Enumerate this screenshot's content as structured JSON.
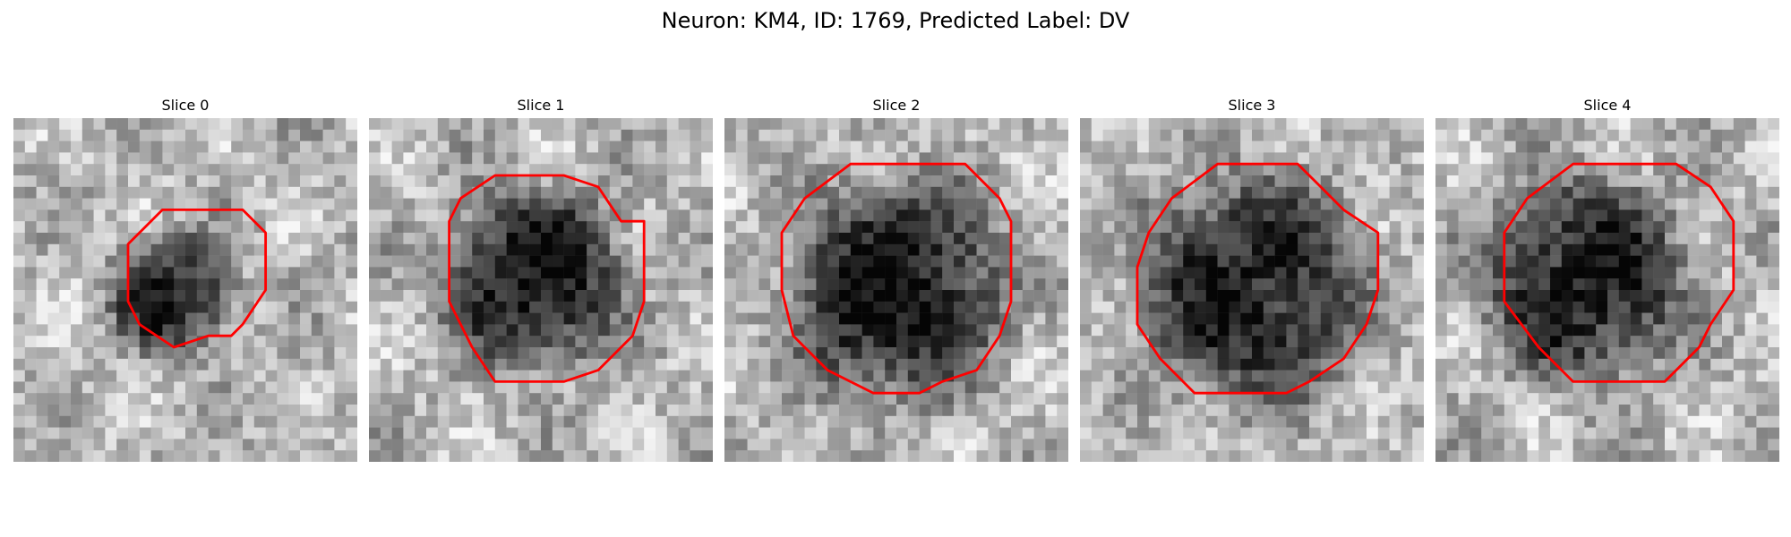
{
  "figure": {
    "suptitle": "Neuron: KM4, ID: 1769, Predicted Label: DV",
    "grid_size": 30,
    "contour_color": "#ff0000",
    "panels": [
      {
        "title": "Slice 0",
        "blob": {
          "cx": 14.0,
          "cy": 15.5,
          "r": 5.5,
          "depth": 0.55
        },
        "contour": [
          [
            13,
            8
          ],
          [
            20,
            8
          ],
          [
            22,
            10
          ],
          [
            22,
            15
          ],
          [
            20,
            18
          ],
          [
            19,
            19
          ],
          [
            17,
            19
          ],
          [
            14,
            20
          ],
          [
            11,
            18
          ],
          [
            10,
            16
          ],
          [
            10,
            11
          ]
        ],
        "seed": 11
      },
      {
        "title": "Slice 1",
        "blob": {
          "cx": 14.5,
          "cy": 14.0,
          "r": 8.0,
          "depth": 0.6
        },
        "contour": [
          [
            11,
            5
          ],
          [
            17,
            5
          ],
          [
            20,
            6
          ],
          [
            22,
            9
          ],
          [
            24,
            9
          ],
          [
            24,
            16
          ],
          [
            23,
            19
          ],
          [
            20,
            22
          ],
          [
            17,
            23
          ],
          [
            11,
            23
          ],
          [
            9,
            20
          ],
          [
            7,
            16
          ],
          [
            7,
            9
          ],
          [
            8,
            7
          ]
        ],
        "seed": 23
      },
      {
        "title": "Slice 2",
        "blob": {
          "cx": 15.0,
          "cy": 15.0,
          "r": 9.5,
          "depth": 0.62
        },
        "contour": [
          [
            11,
            4
          ],
          [
            21,
            4
          ],
          [
            24,
            7
          ],
          [
            25,
            9
          ],
          [
            25,
            16
          ],
          [
            24,
            19
          ],
          [
            22,
            22
          ],
          [
            19,
            23
          ],
          [
            17,
            24
          ],
          [
            13,
            24
          ],
          [
            9,
            22
          ],
          [
            6,
            19
          ],
          [
            5,
            15
          ],
          [
            5,
            10
          ],
          [
            7,
            7
          ]
        ],
        "seed": 37
      },
      {
        "title": "Slice 3",
        "blob": {
          "cx": 15.0,
          "cy": 15.0,
          "r": 10.0,
          "depth": 0.58
        },
        "contour": [
          [
            12,
            4
          ],
          [
            19,
            4
          ],
          [
            21,
            6
          ],
          [
            23,
            8
          ],
          [
            26,
            10
          ],
          [
            26,
            15
          ],
          [
            25,
            18
          ],
          [
            23,
            21
          ],
          [
            20,
            23
          ],
          [
            18,
            24
          ],
          [
            10,
            24
          ],
          [
            7,
            21
          ],
          [
            5,
            18
          ],
          [
            5,
            13
          ],
          [
            6,
            10
          ],
          [
            8,
            7
          ]
        ],
        "seed": 51
      },
      {
        "title": "Slice 4",
        "blob": {
          "cx": 13.0,
          "cy": 14.0,
          "r": 9.0,
          "depth": 0.58
        },
        "contour": [
          [
            12,
            4
          ],
          [
            21,
            4
          ],
          [
            24,
            6
          ],
          [
            26,
            9
          ],
          [
            26,
            15
          ],
          [
            24,
            18
          ],
          [
            23,
            20
          ],
          [
            21,
            22
          ],
          [
            20,
            23
          ],
          [
            17,
            23
          ],
          [
            12,
            23
          ],
          [
            9,
            20
          ],
          [
            6,
            16
          ],
          [
            6,
            10
          ],
          [
            8,
            7
          ]
        ],
        "seed": 67
      }
    ]
  }
}
